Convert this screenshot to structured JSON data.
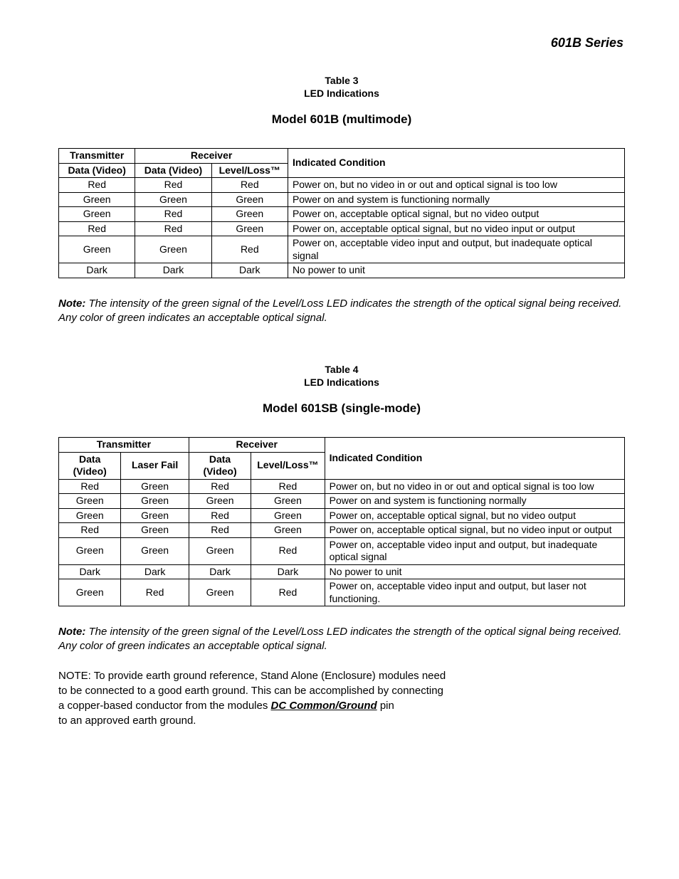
{
  "header": {
    "series": "601B Series"
  },
  "table3": {
    "caption_line1": "Table 3",
    "caption_line2": "LED Indications",
    "model_title": "Model 601B (multimode)",
    "group_headers": {
      "tx": "Transmitter",
      "rx": "Receiver"
    },
    "col_headers": {
      "tx_data": "Data (Video)",
      "rx_data": "Data (Video)",
      "level_loss": "Level/Loss™",
      "condition": "Indicated Condition"
    },
    "col_widths_pct": [
      13.5,
      13.5,
      13.5,
      59.5
    ],
    "rows": [
      [
        "Red",
        "Red",
        "Red",
        "Power on, but no video in or out and optical signal is too low"
      ],
      [
        "Green",
        "Green",
        "Green",
        "Power on and system is functioning normally"
      ],
      [
        "Green",
        "Red",
        "Green",
        "Power on, acceptable optical signal, but no video output"
      ],
      [
        "Red",
        "Red",
        "Green",
        "Power on, acceptable optical signal, but no video input or output"
      ],
      [
        "Green",
        "Green",
        "Red",
        "Power on, acceptable video input and output, but inadequate optical signal"
      ],
      [
        "Dark",
        "Dark",
        "Dark",
        "No power to unit"
      ]
    ]
  },
  "note1": {
    "label": "Note:",
    "text": " The intensity of the green signal of the Level/Loss LED indicates the strength of the optical signal being received.  Any color of green indicates an acceptable optical signal."
  },
  "table4": {
    "caption_line1": "Table 4",
    "caption_line2": "LED Indications",
    "model_title": "Model 601SB (single-mode)",
    "group_headers": {
      "tx": "Transmitter",
      "rx": "Receiver"
    },
    "col_headers": {
      "tx_data": "Data (Video)",
      "laser_fail": "Laser Fail",
      "rx_data": "Data (Video)",
      "level_loss": "Level/Loss™",
      "condition": "Indicated Condition"
    },
    "col_widths_pct": [
      11,
      12,
      11,
      13,
      53
    ],
    "rows": [
      [
        "Red",
        "Green",
        "Red",
        "Red",
        "Power on, but no video in or out and optical signal is too low"
      ],
      [
        "Green",
        "Green",
        "Green",
        "Green",
        "Power on and system is functioning normally"
      ],
      [
        "Green",
        "Green",
        "Red",
        "Green",
        "Power on, acceptable optical signal, but no video output"
      ],
      [
        "Red",
        "Green",
        "Red",
        "Green",
        "Power on, acceptable optical signal, but no video input or output"
      ],
      [
        "Green",
        "Green",
        "Green",
        "Red",
        "Power on, acceptable video input and output, but inadequate optical signal"
      ],
      [
        "Dark",
        "Dark",
        "Dark",
        "Dark",
        "No power to unit"
      ],
      [
        "Green",
        "Red",
        "Green",
        "Red",
        "Power on, acceptable video input and output, but laser not functioning."
      ]
    ]
  },
  "note2": {
    "label": "Note:",
    "text": " The intensity of the green signal of the Level/Loss LED indicates the strength of the optical signal being received.  Any color of green indicates an acceptable optical signal."
  },
  "footer_note": {
    "line1": "NOTE: To provide earth ground reference, Stand Alone (Enclosure) modules need",
    "line2": "to be connected to a good earth ground. This can be accomplished by connecting",
    "line3a": "a copper-based conductor from the modules ",
    "line3_ul": "DC Common/Ground",
    "line3b": " pin",
    "line4": "to an approved earth ground."
  }
}
